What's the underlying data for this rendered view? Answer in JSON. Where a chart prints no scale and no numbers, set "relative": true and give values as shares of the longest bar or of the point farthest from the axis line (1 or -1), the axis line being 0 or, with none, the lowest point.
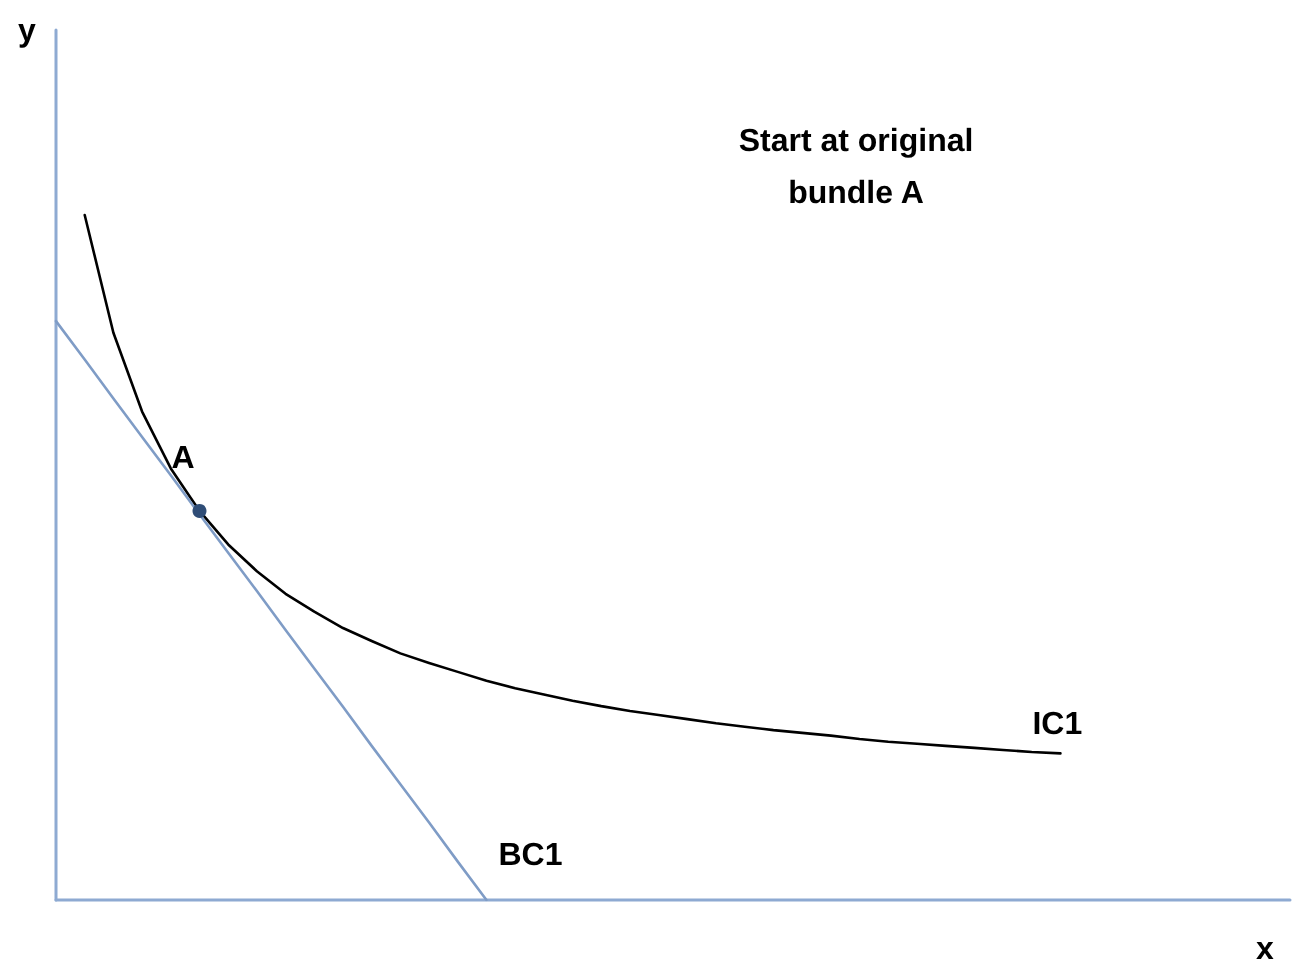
{
  "chart_data": {
    "type": "line",
    "relative": true,
    "tick_labels": false,
    "grid": false,
    "legend": false,
    "marker": "none",
    "categories": [
      null,
      null,
      null,
      null,
      null,
      null,
      null,
      null,
      null,
      null,
      null,
      null,
      null,
      null,
      null,
      null,
      null,
      null,
      null,
      null,
      null,
      null,
      null,
      null,
      null,
      null,
      null,
      null,
      null,
      null,
      null,
      null,
      null,
      null,
      null,
      null,
      null,
      null,
      null,
      null,
      null,
      null,
      null,
      null
    ],
    "series": [
      {
        "name": "IC1",
        "color": "#000000",
        "values": [
          null,
          1,
          0.828,
          0.713,
          0.63,
          0.568,
          0.519,
          0.48,
          0.447,
          0.421,
          0.397,
          0.378,
          0.36,
          0.346,
          0.333,
          0.32,
          0.309,
          0.3,
          0.291,
          0.283,
          0.276,
          0.27,
          0.264,
          0.258,
          0.253,
          0.248,
          0.244,
          0.24,
          0.235,
          0.231,
          0.228,
          0.225,
          0.222,
          0.219,
          0.216,
          0.214,
          null,
          null,
          null,
          null,
          null,
          null,
          null,
          null
        ]
      },
      {
        "name": "BC1",
        "color": "#7f9cc6",
        "values": [
          0.845,
          0.789,
          0.732,
          0.676,
          0.62,
          0.563,
          0.507,
          0.451,
          0.394,
          0.338,
          0.282,
          0.225,
          0.169,
          0.113,
          0.056,
          0,
          null,
          null,
          null,
          null,
          null,
          null,
          null,
          null,
          null,
          null,
          null,
          null,
          null,
          null,
          null,
          null,
          null,
          null,
          null,
          null,
          null,
          null,
          null,
          null,
          null,
          null,
          null,
          null
        ]
      },
      {
        "name": "A",
        "marker": "circle",
        "color": "#2f4d77",
        "values": [
          null,
          null,
          null,
          null,
          null,
          0.568,
          null,
          null,
          null,
          null,
          null,
          null,
          null,
          null,
          null,
          null,
          null,
          null,
          null,
          null,
          null,
          null,
          null,
          null,
          null,
          null,
          null,
          null,
          null,
          null,
          null,
          null,
          null,
          null,
          null,
          null,
          null,
          null,
          null,
          null,
          null,
          null,
          null,
          null
        ]
      }
    ],
    "annotations": [
      "y",
      "Start at original\nbundle A",
      "x"
    ]
  }
}
